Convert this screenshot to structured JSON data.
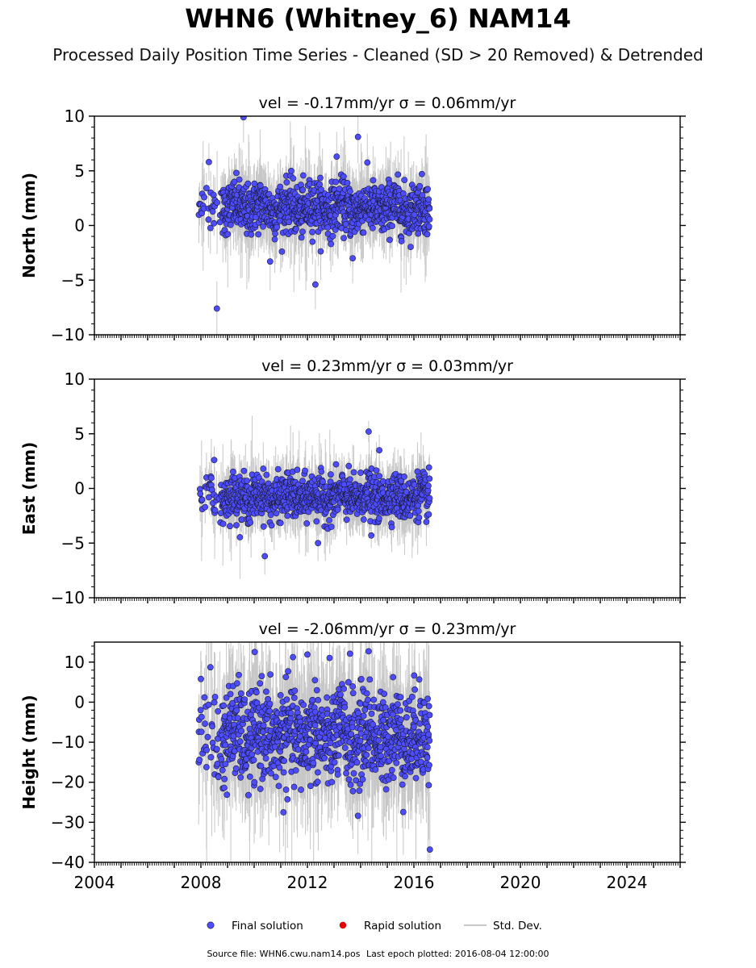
{
  "header": {
    "title": "WHN6 (Whitney_6) NAM14",
    "subtitle": "Processed Daily Position Time Series - Cleaned (SD > 20 Removed) & Detrended"
  },
  "footer": {
    "source_label": "Source file: WHN6.cwu.nam14.pos",
    "last_epoch_label": "Last epoch plotted: 2016-08-04 12:00:00"
  },
  "colors": {
    "final": "#4d4dff",
    "rapid": "#e00000",
    "stddev": "#b5b5b5",
    "axis": "#000000"
  },
  "chart_data": [
    {
      "type": "scatter",
      "panel": "north",
      "title": "vel = -0.17mm/yr   σ = 0.06mm/yr",
      "ylabel": "North (mm)",
      "xlim": [
        2004,
        2026
      ],
      "ylim": [
        -10,
        10
      ],
      "yticks": [
        -10,
        -5,
        0,
        5,
        10
      ],
      "xticks": [
        2004,
        2008,
        2012,
        2016,
        2020,
        2024
      ],
      "data_range": [
        2007.9,
        2016.6
      ],
      "center": 1.6,
      "spread": 1.3,
      "outliers": [
        [
          2008.6,
          -7.6
        ],
        [
          2009.6,
          9.9
        ],
        [
          2012.3,
          -5.4
        ],
        [
          2013.9,
          8.1
        ],
        [
          2013.1,
          6.3
        ],
        [
          2008.3,
          5.8
        ],
        [
          2013.7,
          -3.0
        ],
        [
          2010.6,
          -3.3
        ]
      ]
    },
    {
      "type": "scatter",
      "panel": "east",
      "title": "vel = 0.23mm/yr   σ = 0.03mm/yr",
      "ylabel": "East (mm)",
      "xlim": [
        2004,
        2026
      ],
      "ylim": [
        -10,
        10
      ],
      "yticks": [
        -10,
        -5,
        0,
        5,
        10
      ],
      "xticks": [
        2004,
        2008,
        2012,
        2016,
        2020,
        2024
      ],
      "data_range": [
        2007.9,
        2016.6
      ],
      "center": -0.8,
      "spread": 1.1,
      "outliers": [
        [
          2014.3,
          5.2
        ],
        [
          2014.7,
          3.5
        ],
        [
          2008.5,
          2.6
        ],
        [
          2010.4,
          -6.2
        ],
        [
          2012.4,
          -5.0
        ],
        [
          2014.4,
          -4.3
        ]
      ]
    },
    {
      "type": "scatter",
      "panel": "height",
      "title": "vel = -2.06mm/yr   σ = 0.23mm/yr",
      "ylabel": "Height (mm)",
      "xlim": [
        2004,
        2026
      ],
      "ylim": [
        -40,
        15
      ],
      "yticks": [
        -40,
        -30,
        -20,
        -10,
        0,
        10
      ],
      "xticks": [
        2004,
        2008,
        2012,
        2016,
        2020,
        2024
      ],
      "data_range": [
        2007.9,
        2016.6
      ],
      "center": -8.5,
      "spread": 6.5,
      "outliers": [
        [
          2016.6,
          -36.8
        ],
        [
          2014.3,
          12.7
        ],
        [
          2012.0,
          11.9
        ],
        [
          2013.6,
          12.1
        ],
        [
          2011.1,
          -27.5
        ],
        [
          2013.9,
          -28.4
        ],
        [
          2008.0,
          5.8
        ]
      ]
    }
  ],
  "legend": {
    "placement": "bottom-center",
    "items": [
      {
        "name": "Final solution",
        "marker": "circle",
        "color": "#4d4dff"
      },
      {
        "name": "Rapid solution",
        "marker": "circle",
        "color": "#e00000"
      },
      {
        "name": "Std. Dev.",
        "marker": "line",
        "color": "#b5b5b5"
      }
    ]
  }
}
